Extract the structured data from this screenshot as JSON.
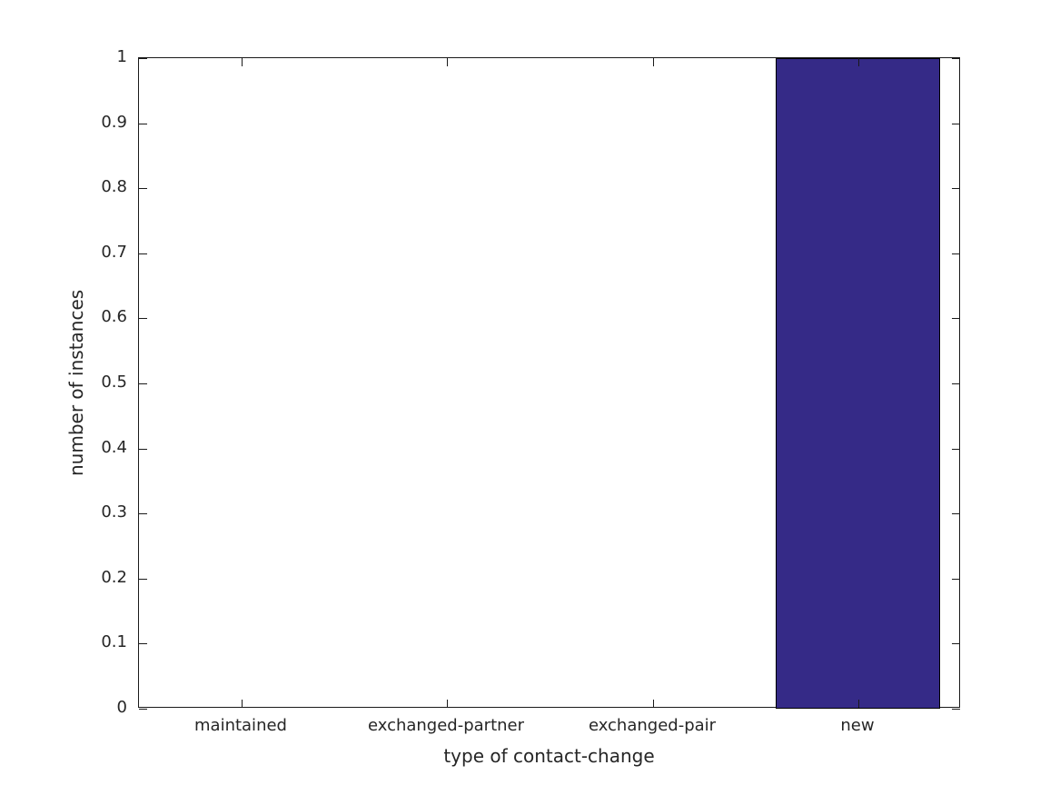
{
  "chart_data": {
    "type": "bar",
    "title": "",
    "xlabel": "type of contact-change",
    "ylabel": "number of instances",
    "categories": [
      "maintained",
      "exchanged-partner",
      "exchanged-pair",
      "new"
    ],
    "values": [
      0,
      0,
      0,
      1
    ],
    "ylim": [
      0,
      1
    ],
    "yticks": [
      0,
      0.1,
      0.2,
      0.3,
      0.4,
      0.5,
      0.6,
      0.7,
      0.8,
      0.9,
      1
    ],
    "ytick_labels": [
      "0",
      "0.1",
      "0.2",
      "0.3",
      "0.4",
      "0.5",
      "0.6",
      "0.7",
      "0.8",
      "0.9",
      "1"
    ],
    "bar_width_fraction": 0.8,
    "bar_color": "#352a87",
    "bar_edge_color": "#000000",
    "axis_color": "#1a1a1a",
    "text_color": "#262626",
    "background": "#ffffff",
    "grid": false,
    "legend": null,
    "tick_direction": "in",
    "box": true
  }
}
